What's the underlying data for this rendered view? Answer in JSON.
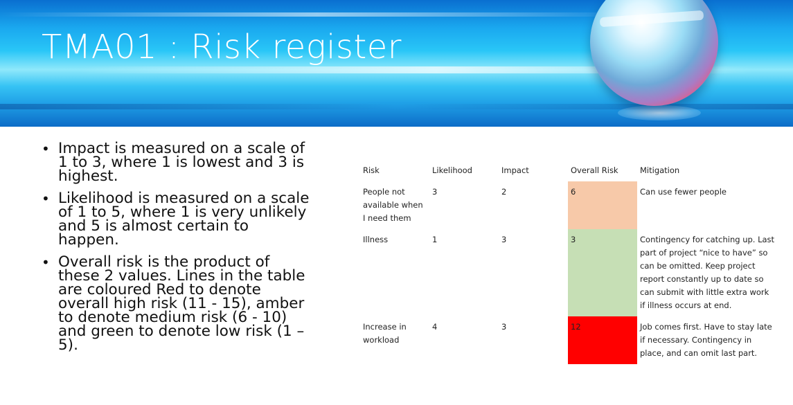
{
  "slide": {
    "title": "TMA01 : Risk register"
  },
  "bullets": [
    "Impact is measured on a scale of 1 to 3, where 1 is lowest and 3 is highest.",
    "Likelihood is measured on a scale of 1 to 5, where 1 is very unlikely and 5 is almost certain to happen.",
    "Overall risk is the product of these 2 values. Lines in the table are coloured Red to denote overall high risk (11 - 15), amber to denote medium risk (6 - 10) and green to denote low risk (1 – 5)."
  ],
  "table": {
    "headers": [
      "Risk",
      "Likelihood",
      "Impact",
      "Overall Risk",
      "Mitigation"
    ],
    "rows": [
      {
        "risk": "People not available when I need them",
        "likelihood": "3",
        "impact": "2",
        "overall": "6",
        "level_color": "#f7c9a9",
        "mitigation": "Can use fewer people"
      },
      {
        "risk": "Illness",
        "likelihood": "1",
        "impact": "3",
        "overall": "3",
        "level_color": "#c6dfb5",
        "mitigation": "Contingency for catching up. Last part of project “nice to have” so can be omitted. Keep project report constantly up to date so can submit with little extra work if illness occurs at end."
      },
      {
        "risk": "Increase in workload",
        "likelihood": "4",
        "impact": "3",
        "overall": "12",
        "level_color": "#ff0000",
        "mitigation": "Job comes first. Have to stay late if necessary. Contingency in place, and can omit last part."
      }
    ]
  }
}
